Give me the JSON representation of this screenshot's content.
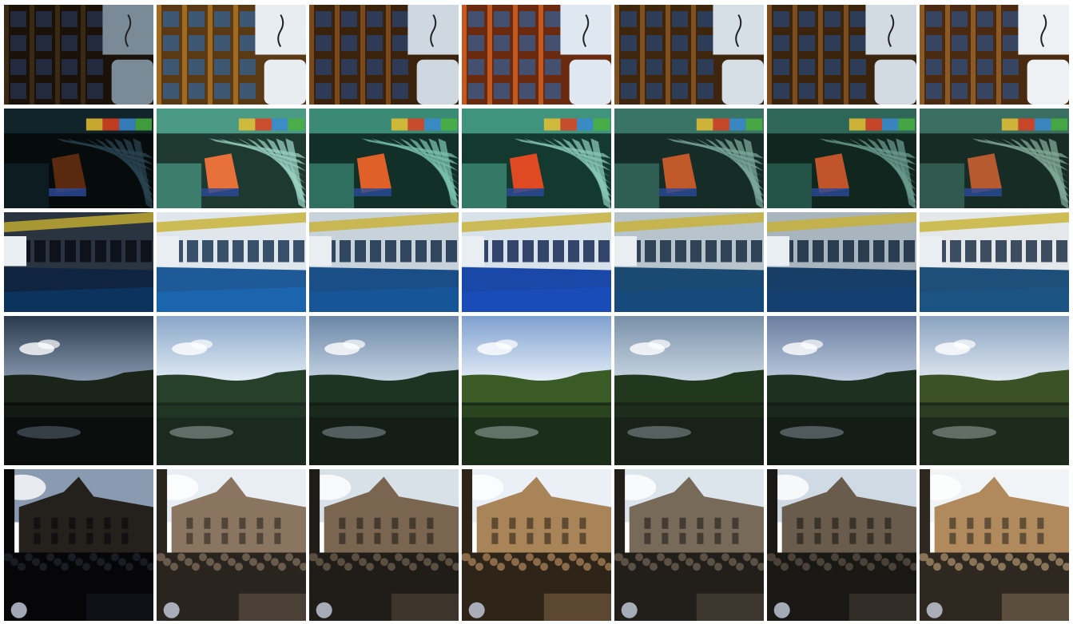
{
  "figure": {
    "description_free": true,
    "columns": 7,
    "rows": [
      {
        "scene": "bookshelf",
        "sky": "#000000",
        "tones": [
          {
            "dark": "#1a1208",
            "mid": "#3a2a14",
            "light": "#7a8a96",
            "accent": "#2a3a66"
          },
          {
            "dark": "#5a3a14",
            "mid": "#a06a22",
            "light": "#e8edf2",
            "accent": "#2a6ab0"
          },
          {
            "dark": "#3a220c",
            "mid": "#7a4a1c",
            "light": "#cfd8e0",
            "accent": "#244c88"
          },
          {
            "dark": "#6a2a10",
            "mid": "#c05a20",
            "light": "#dfe8f0",
            "accent": "#2a6ab0"
          },
          {
            "dark": "#3e260e",
            "mid": "#80501e",
            "light": "#d6dee6",
            "accent": "#244c88"
          },
          {
            "dark": "#3a240e",
            "mid": "#7a4c1e",
            "light": "#d2dae2",
            "accent": "#244c88"
          },
          {
            "dark": "#4a2a10",
            "mid": "#8e5a24",
            "light": "#eef1f4",
            "accent": "#2a5a9a"
          }
        ]
      },
      {
        "scene": "stadium",
        "tones": [
          {
            "dark": "#060b0c",
            "mid": "#10242a",
            "light": "#2a4450",
            "accent": "#5a2a10"
          },
          {
            "dark": "#1e3a30",
            "mid": "#4a9a86",
            "light": "#9ad0c0",
            "accent": "#e8703a"
          },
          {
            "dark": "#123028",
            "mid": "#3a8a76",
            "light": "#7ac0ae",
            "accent": "#e0602a"
          },
          {
            "dark": "#143a30",
            "mid": "#40947e",
            "light": "#88c8b4",
            "accent": "#e04a22"
          },
          {
            "dark": "#162c26",
            "mid": "#3a7466",
            "light": "#7aa89a",
            "accent": "#c0582a"
          },
          {
            "dark": "#10261e",
            "mid": "#2e6658",
            "light": "#6a9a8c",
            "accent": "#c0542a"
          },
          {
            "dark": "#182c26",
            "mid": "#3a6e60",
            "light": "#80a898",
            "accent": "#b85a30"
          }
        ]
      },
      {
        "scene": "hall",
        "tones": [
          {
            "dark": "#060a12",
            "mid": "#0e2440",
            "light": "#2a3440",
            "accent": "#0c3a6a"
          },
          {
            "dark": "#0e2a4a",
            "mid": "#1e5a98",
            "light": "#dfe6ec",
            "accent": "#1a6ab8"
          },
          {
            "dark": "#0a2440",
            "mid": "#1a4e86",
            "light": "#c8d2da",
            "accent": "#165aa0"
          },
          {
            "dark": "#0a1e4a",
            "mid": "#1a48a8",
            "light": "#d8e2ea",
            "accent": "#1a4ec0"
          },
          {
            "dark": "#0c2238",
            "mid": "#1a4a72",
            "light": "#b8c4cc",
            "accent": "#164a80"
          },
          {
            "dark": "#0a1e34",
            "mid": "#163e66",
            "light": "#a8b4be",
            "accent": "#144276"
          },
          {
            "dark": "#10263c",
            "mid": "#1e4e7a",
            "light": "#e4e8ea",
            "accent": "#1a5688"
          }
        ]
      },
      {
        "scene": "lake",
        "tones": [
          {
            "dark": "#0c0e0e",
            "mid": "#2a3a4e",
            "light": "#8a9ab0",
            "accent": "#1a2418"
          },
          {
            "dark": "#1a2a1e",
            "mid": "#8aa6c8",
            "light": "#e4eef6",
            "accent": "#26402a"
          },
          {
            "dark": "#141e16",
            "mid": "#6a86a6",
            "light": "#c8d6e4",
            "accent": "#1e3422"
          },
          {
            "dark": "#1a2e1a",
            "mid": "#7ea0d0",
            "light": "#e8f0f8",
            "accent": "#3a5a26"
          },
          {
            "dark": "#182218",
            "mid": "#7890a8",
            "light": "#ccd8e4",
            "accent": "#22381e"
          },
          {
            "dark": "#141c16",
            "mid": "#6a7ea0",
            "light": "#c0cce0",
            "accent": "#1e3020"
          },
          {
            "dark": "#1e2a1c",
            "mid": "#8aa2c0",
            "light": "#e2eaf2",
            "accent": "#3a5226"
          }
        ]
      },
      {
        "scene": "crowd",
        "tones": [
          {
            "dark": "#060608",
            "mid": "#1a1c24",
            "light": "#8a9ab0",
            "accent": "#24201c"
          },
          {
            "dark": "#2a241e",
            "mid": "#6a5c4c",
            "light": "#e8eef4",
            "accent": "#8a7660"
          },
          {
            "dark": "#201c18",
            "mid": "#5a4e40",
            "light": "#d8e0e8",
            "accent": "#7a6650"
          },
          {
            "dark": "#2e2418",
            "mid": "#8a6a48",
            "light": "#eaf0f6",
            "accent": "#a88458"
          },
          {
            "dark": "#221e1a",
            "mid": "#5a5044",
            "light": "#dce4ec",
            "accent": "#786a58"
          },
          {
            "dark": "#1a1814",
            "mid": "#4a4238",
            "light": "#d0dae4",
            "accent": "#6a5c4c"
          },
          {
            "dark": "#2e2820",
            "mid": "#8a7458",
            "light": "#f0f4f6",
            "accent": "#b08a5c"
          }
        ]
      }
    ]
  }
}
